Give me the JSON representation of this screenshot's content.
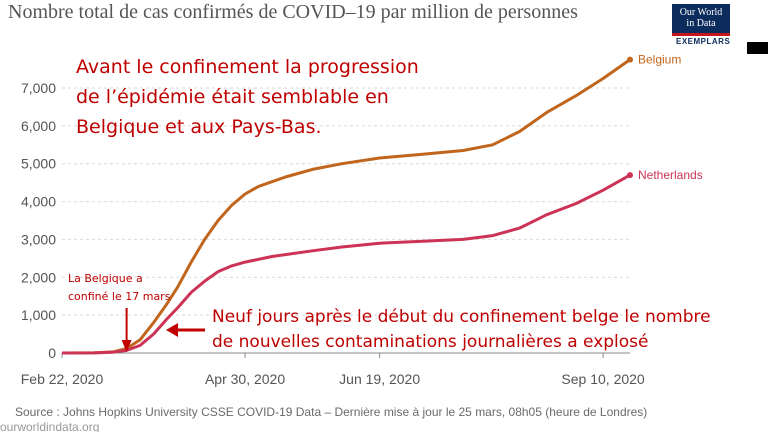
{
  "title": "Nombre total de cas confirmés de COVID–19 par million de personnes",
  "logo": {
    "line1": "Our World",
    "line2": "in Data",
    "sub": "EXEMPLARS"
  },
  "source": "Source : Johns Hopkins University CSSE COVID-19 Data – Dernière mise à jour le 25 mars, 08h05 (heure de Londres)",
  "bottom_strip": "ourworldindata.org",
  "annotations": {
    "top": [
      "Avant le confinement la progression",
      "de l’épidémie était semblable en",
      "Belgique et aux Pays-Bas."
    ],
    "lockdown": [
      "La Belgique a",
      "confiné le 17 mars"
    ],
    "bottom": [
      "Neuf jours après le début du confinement belge  le nombre",
      "de nouvelles contaminations journalières a explosé"
    ]
  },
  "colors": {
    "belgium": "#c0651b",
    "netherlands": "#cc3356",
    "annotation": "#c00000",
    "grid": "#d9d9d9"
  },
  "chart_data": {
    "type": "line",
    "title": "Nombre total de cas confirmés de COVID–19 par million de personnes",
    "x_start": "2020-02-22",
    "x_end": "2020-09-20",
    "x_ticks": [
      {
        "date": "2020-02-22",
        "label": "Feb 22, 2020"
      },
      {
        "date": "2020-04-30",
        "label": "Apr 30, 2020"
      },
      {
        "date": "2020-06-19",
        "label": "Jun 19, 2020"
      },
      {
        "date": "2020-09-10",
        "label": "Sep 10, 2020"
      }
    ],
    "ylim": [
      0,
      7000
    ],
    "y_ticks": [
      0,
      1000,
      2000,
      3000,
      4000,
      5000,
      6000,
      7000
    ],
    "y_tick_labels": [
      "0",
      "1,000",
      "2,000",
      "3,000",
      "4,000",
      "5,000",
      "6,000",
      "7,000"
    ],
    "grid": true,
    "series": [
      {
        "name": "Belgium",
        "points": [
          [
            "2020-02-22",
            0
          ],
          [
            "2020-03-05",
            5
          ],
          [
            "2020-03-12",
            30
          ],
          [
            "2020-03-17",
            120
          ],
          [
            "2020-03-22",
            350
          ],
          [
            "2020-03-27",
            800
          ],
          [
            "2020-04-01",
            1300
          ],
          [
            "2020-04-05",
            1750
          ],
          [
            "2020-04-10",
            2400
          ],
          [
            "2020-04-15",
            3000
          ],
          [
            "2020-04-20",
            3500
          ],
          [
            "2020-04-25",
            3900
          ],
          [
            "2020-04-30",
            4200
          ],
          [
            "2020-05-05",
            4400
          ],
          [
            "2020-05-15",
            4650
          ],
          [
            "2020-05-25",
            4850
          ],
          [
            "2020-06-05",
            5000
          ],
          [
            "2020-06-19",
            5150
          ],
          [
            "2020-07-05",
            5250
          ],
          [
            "2020-07-20",
            5350
          ],
          [
            "2020-07-31",
            5500
          ],
          [
            "2020-08-10",
            5850
          ],
          [
            "2020-08-20",
            6350
          ],
          [
            "2020-08-31",
            6800
          ],
          [
            "2020-09-10",
            7250
          ],
          [
            "2020-09-20",
            7750
          ]
        ]
      },
      {
        "name": "Netherlands",
        "points": [
          [
            "2020-02-22",
            0
          ],
          [
            "2020-03-05",
            3
          ],
          [
            "2020-03-12",
            20
          ],
          [
            "2020-03-17",
            70
          ],
          [
            "2020-03-22",
            200
          ],
          [
            "2020-03-27",
            500
          ],
          [
            "2020-04-01",
            900
          ],
          [
            "2020-04-05",
            1200
          ],
          [
            "2020-04-10",
            1600
          ],
          [
            "2020-04-15",
            1900
          ],
          [
            "2020-04-20",
            2150
          ],
          [
            "2020-04-25",
            2300
          ],
          [
            "2020-04-30",
            2400
          ],
          [
            "2020-05-10",
            2550
          ],
          [
            "2020-05-25",
            2700
          ],
          [
            "2020-06-05",
            2800
          ],
          [
            "2020-06-19",
            2900
          ],
          [
            "2020-07-05",
            2950
          ],
          [
            "2020-07-20",
            3000
          ],
          [
            "2020-07-31",
            3100
          ],
          [
            "2020-08-10",
            3300
          ],
          [
            "2020-08-20",
            3650
          ],
          [
            "2020-08-31",
            3950
          ],
          [
            "2020-09-10",
            4300
          ],
          [
            "2020-09-20",
            4700
          ]
        ]
      }
    ]
  }
}
